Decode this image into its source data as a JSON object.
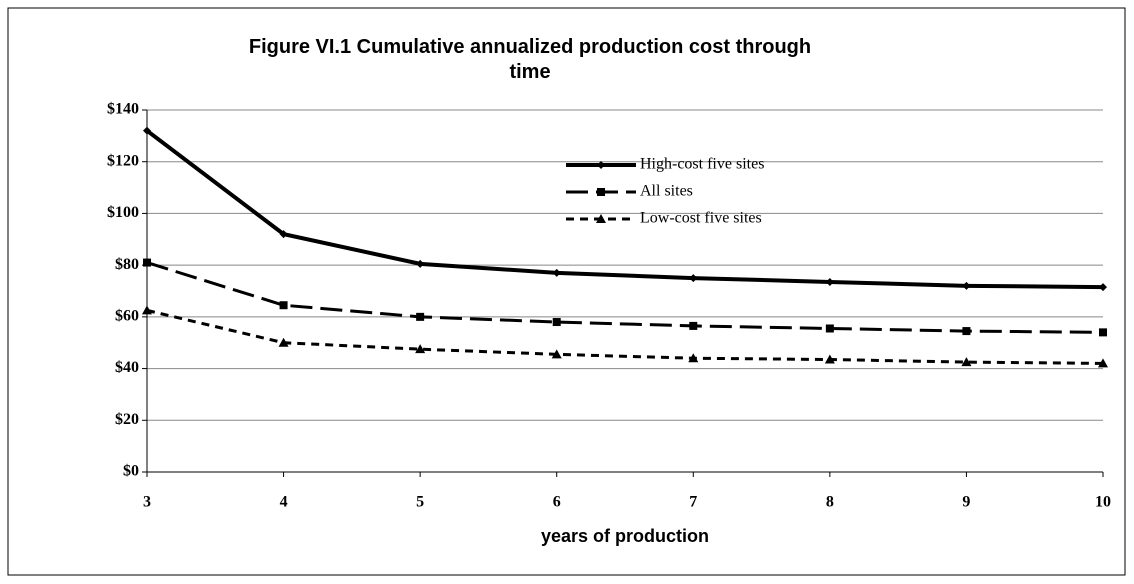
{
  "chart_data": {
    "type": "line",
    "title": "Figure VI.1  Cumulative annualized production cost through time",
    "xlabel": "years of production",
    "x": [
      3,
      4,
      5,
      6,
      7,
      8,
      9,
      10
    ],
    "xlim": [
      3,
      10
    ],
    "xticks": [
      3,
      4,
      5,
      6,
      7,
      8,
      9,
      10
    ],
    "ylim": [
      0,
      140
    ],
    "yticks": [
      {
        "value": 0,
        "label": "$0"
      },
      {
        "value": 20,
        "label": "$20"
      },
      {
        "value": 40,
        "label": "$40"
      },
      {
        "value": 60,
        "label": "$60"
      },
      {
        "value": 80,
        "label": "$80"
      },
      {
        "value": 100,
        "label": "$100"
      },
      {
        "value": 120,
        "label": "$120"
      },
      {
        "value": 140,
        "label": "$140"
      }
    ],
    "grid": true,
    "series": [
      {
        "name": "High-cost five sites",
        "color": "#000000",
        "line_style": "solid",
        "marker": "diamond",
        "values": [
          132,
          92,
          80.5,
          77,
          75,
          73.5,
          72,
          71.5
        ]
      },
      {
        "name": "All sites",
        "color": "#000000",
        "line_style": "dashed",
        "marker": "square",
        "values": [
          81,
          64.5,
          60,
          58,
          56.5,
          55.5,
          54.5,
          54
        ]
      },
      {
        "name": "Low-cost five sites",
        "color": "#000000",
        "line_style": "dotted",
        "marker": "triangle",
        "values": [
          62.5,
          50,
          47.5,
          45.5,
          44,
          43.5,
          42.5,
          42
        ]
      }
    ]
  }
}
